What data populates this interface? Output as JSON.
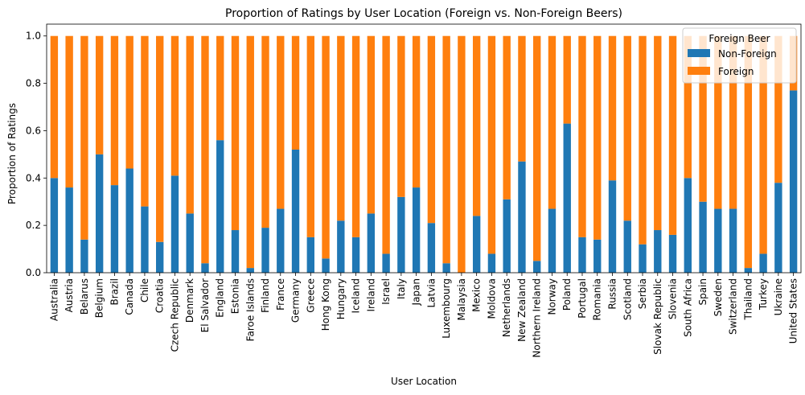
{
  "chart_data": {
    "type": "bar",
    "stacked": true,
    "title": "Proportion of Ratings by User Location (Foreign vs. Non-Foreign Beers)",
    "xlabel": "User Location",
    "ylabel": "Proportion of Ratings",
    "ylim": [
      0,
      1.05
    ],
    "yticks": [
      "0.0",
      "0.2",
      "0.4",
      "0.6",
      "0.8",
      "1.0"
    ],
    "legend": {
      "title": "Foreign Beer",
      "placement": "top-right"
    },
    "categories": [
      "Australia",
      "Austria",
      "Belarus",
      "Belgium",
      "Brazil",
      "Canada",
      "Chile",
      "Croatia",
      "Czech Republic",
      "Denmark",
      "El Salvador",
      "England",
      "Estonia",
      "Faroe Islands",
      "Finland",
      "France",
      "Germany",
      "Greece",
      "Hong Kong",
      "Hungary",
      "Iceland",
      "Ireland",
      "Israel",
      "Italy",
      "Japan",
      "Latvia",
      "Luxembourg",
      "Malaysia",
      "Mexico",
      "Moldova",
      "Netherlands",
      "New Zealand",
      "Northern Ireland",
      "Norway",
      "Poland",
      "Portugal",
      "Romania",
      "Russia",
      "Scotland",
      "Serbia",
      "Slovak Republic",
      "Slovenia",
      "South Africa",
      "Spain",
      "Sweden",
      "Switzerland",
      "Thailand",
      "Turkey",
      "Ukraine",
      "United States"
    ],
    "series": [
      {
        "name": "Non-Foreign",
        "color": "#1f77b4",
        "values": [
          0.4,
          0.36,
          0.14,
          0.5,
          0.37,
          0.44,
          0.28,
          0.13,
          0.41,
          0.25,
          0.04,
          0.56,
          0.18,
          0.02,
          0.19,
          0.27,
          0.52,
          0.15,
          0.06,
          0.22,
          0.15,
          0.25,
          0.08,
          0.32,
          0.36,
          0.21,
          0.04,
          0.0,
          0.24,
          0.08,
          0.31,
          0.47,
          0.05,
          0.27,
          0.63,
          0.15,
          0.14,
          0.39,
          0.22,
          0.12,
          0.18,
          0.16,
          0.4,
          0.3,
          0.27,
          0.27,
          0.02,
          0.08,
          0.38,
          0.77
        ]
      },
      {
        "name": "Foreign",
        "color": "#ff7f0e",
        "values": [
          0.6,
          0.64,
          0.86,
          0.5,
          0.63,
          0.56,
          0.72,
          0.87,
          0.59,
          0.75,
          0.96,
          0.44,
          0.82,
          0.98,
          0.81,
          0.73,
          0.48,
          0.85,
          0.94,
          0.78,
          0.85,
          0.75,
          0.92,
          0.68,
          0.64,
          0.79,
          0.96,
          1.0,
          0.76,
          0.92,
          0.69,
          0.53,
          0.95,
          0.73,
          0.37,
          0.85,
          0.86,
          0.61,
          0.78,
          0.88,
          0.82,
          0.84,
          0.6,
          0.7,
          0.73,
          0.73,
          0.98,
          0.92,
          0.62,
          0.23
        ]
      }
    ]
  }
}
